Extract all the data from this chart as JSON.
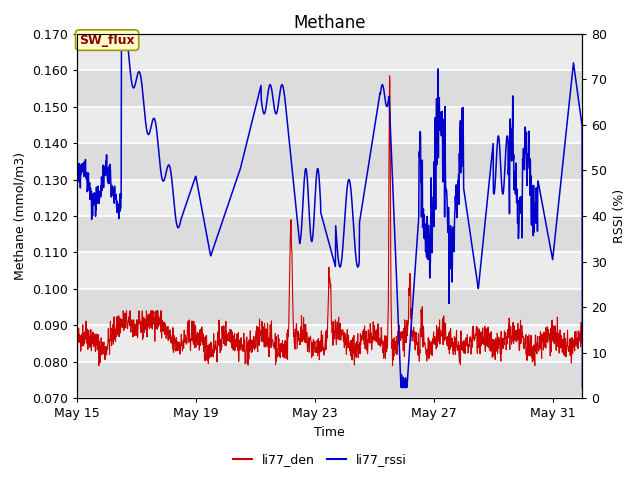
{
  "title": "Methane",
  "xlabel": "Time",
  "ylabel_left": "Methane (mmol/m3)",
  "ylabel_right": "RSSI (%)",
  "annotation_box": "SW_flux",
  "legend_entries": [
    "li77_den",
    "li77_rssi"
  ],
  "legend_colors": [
    "#cc0000",
    "#0000cc"
  ],
  "ylim_left": [
    0.07,
    0.17
  ],
  "ylim_right": [
    0,
    80
  ],
  "yticks_left": [
    0.07,
    0.08,
    0.09,
    0.1,
    0.11,
    0.12,
    0.13,
    0.14,
    0.15,
    0.16,
    0.17
  ],
  "yticks_right": [
    0,
    10,
    20,
    30,
    40,
    50,
    60,
    70,
    80
  ],
  "xtick_labels": [
    "May 15",
    "May 19",
    "May 23",
    "May 27",
    "May 31"
  ],
  "xtick_positions": [
    0,
    4,
    8,
    12,
    16
  ],
  "plot_bg_color": "#e8e8e8",
  "band_color_light": "#dcdcdc",
  "band_color_white": "#f0f0f0",
  "grid_color": "#ffffff",
  "line_color_den": "#cc0000",
  "line_color_rssi": "#0000cc",
  "title_fontsize": 12,
  "axis_fontsize": 9,
  "tick_fontsize": 9,
  "fig_width": 6.4,
  "fig_height": 4.8,
  "fig_dpi": 100
}
